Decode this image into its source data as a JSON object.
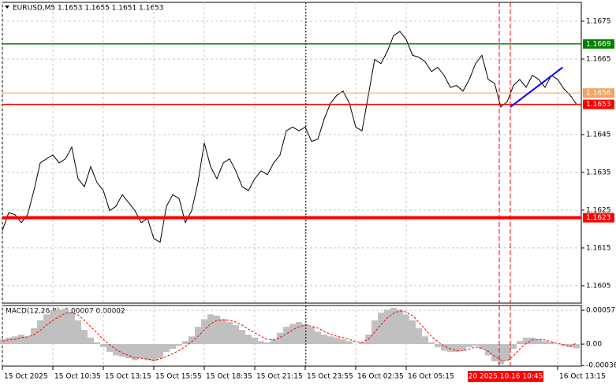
{
  "chart_data": [
    {
      "type": "line",
      "title": "EURUSD,M5 1.1653 1.1655 1.1651 1.1653",
      "color": "#000000",
      "values": [
        1.16196,
        1.16243,
        1.16238,
        1.16217,
        1.16238,
        1.16302,
        1.16375,
        1.16386,
        1.16396,
        1.16375,
        1.16386,
        1.16417,
        1.16333,
        1.16312,
        1.16365,
        1.16323,
        1.16302,
        1.16249,
        1.1626,
        1.16291,
        1.1627,
        1.16249,
        1.16217,
        1.16228,
        1.16175,
        1.16165,
        1.1626,
        1.16291,
        1.16281,
        1.16217,
        1.16249,
        1.16323,
        1.16428,
        1.16365,
        1.16333,
        1.16375,
        1.16386,
        1.16354,
        1.16312,
        1.16302,
        1.16333,
        1.16354,
        1.16344,
        1.16375,
        1.16396,
        1.1646,
        1.1647,
        1.1646,
        1.1647,
        1.16432,
        1.16438,
        1.16491,
        1.16533,
        1.16554,
        1.16565,
        1.16533,
        1.1647,
        1.1646,
        1.16554,
        1.16649,
        1.16638,
        1.1667,
        1.16712,
        1.16723,
        1.16702,
        1.1666,
        1.16655,
        1.16643,
        1.16617,
        1.16628,
        1.16607,
        1.16575,
        1.1658,
        1.16565,
        1.16596,
        1.16638,
        1.1666,
        1.16596,
        1.16586,
        1.16523,
        1.16537,
        1.1658,
        1.16596,
        1.16575,
        1.16607,
        1.16596,
        1.16575,
        1.16607,
        1.16596,
        1.16571,
        1.16554,
        1.1653
      ],
      "xlim": [
        0,
        91.75
      ],
      "xticks": [
        {
          "value": 0,
          "label": "15 Oct 2025"
        },
        {
          "value": 8,
          "label": "15 Oct 10:35"
        },
        {
          "value": 16,
          "label": "15 Oct 13:15"
        },
        {
          "value": 24,
          "label": "15 Oct 15:55"
        },
        {
          "value": 32,
          "label": "15 Oct 18:35"
        },
        {
          "value": 40,
          "label": "15 Oct 21:15"
        },
        {
          "value": 48,
          "label": "15 Oct 23:55"
        },
        {
          "value": 56,
          "label": "16 Oct 02:35"
        },
        {
          "value": 64,
          "label": "16 Oct 05:15"
        },
        {
          "value": 88,
          "label": "16 Oct 13:15"
        }
      ],
      "ylim": [
        1.16004,
        1.168
      ],
      "yticks": [
        1.1675,
        1.1665,
        1.1645,
        1.1635,
        1.1625,
        1.1615,
        1.1605
      ],
      "grid": true,
      "hlines": [
        {
          "value": 1.1669,
          "color": "#008000",
          "style": "normal"
        },
        {
          "value": 1.1656,
          "color": "#f4a460",
          "style": "thin"
        },
        {
          "value": 1.1653,
          "color": "#ff0000",
          "style": "normal"
        },
        {
          "value": 1.1623,
          "color": "#ff0000",
          "style": "thick"
        }
      ],
      "trendline": {
        "x": [
          80.5,
          88.8
        ],
        "values": [
          1.16523,
          1.16628
        ],
        "color": "#0000ff"
      },
      "vlines": [
        {
          "x": 48.1,
          "color": "#000000",
          "style": "dotted"
        },
        {
          "x": 78.75,
          "color": "#ff0000",
          "style": "dashed"
        },
        {
          "x": 80.5,
          "color": "#ff0000",
          "style": "dashed"
        }
      ],
      "cursor_label": {
        "value": 79.75,
        "label": "20 2025.10.16 10:45",
        "color": "#ff0000"
      }
    },
    {
      "type": "bar",
      "title": "MACD(12,26,9) -0.00007 0.00002",
      "color": "#c0c0c0",
      "values": [
        8e-05,
        0.00011,
        0.00013,
        0.00016,
        0.00013,
        0.00027,
        0.0004,
        0.0005,
        0.00056,
        0.00058,
        0.0006,
        0.00053,
        0.0004,
        0.00024,
        0.00011,
        3e-05,
        -5e-05,
        -0.00013,
        -0.00019,
        -0.00021,
        -0.00024,
        -0.00027,
        -0.00024,
        -0.00027,
        -0.00029,
        -0.00024,
        -0.00013,
        -8e-05,
        -3e-05,
        5e-05,
        0.00013,
        0.00029,
        0.00042,
        0.0005,
        0.00048,
        0.00042,
        0.00037,
        0.00032,
        0.00024,
        0.00016,
        0.00011,
        5e-05,
        3e-05,
        8e-05,
        0.00019,
        0.00029,
        0.00034,
        0.00037,
        0.00034,
        0.00029,
        0.00021,
        0.00016,
        0.00013,
        0.00011,
        8e-05,
        5e-05,
        0,
        3e-05,
        0.00016,
        0.0004,
        0.00053,
        0.00058,
        0.00061,
        0.00058,
        0.0005,
        0.0004,
        0.00027,
        0.00013,
        3e-05,
        -5e-05,
        -0.00011,
        -0.00013,
        -0.00013,
        -0.00011,
        -5e-05,
        -3e-05,
        -8e-05,
        -0.00019,
        -0.00029,
        -0.00034,
        -0.00027,
        -8e-05,
        5e-05,
        0.00011,
        0.00011,
        8e-05,
        5e-05,
        3e-05,
        0,
        -3e-05,
        -5e-05,
        -7e-05
      ],
      "signal_color": "#ff0000",
      "signal_values": [
        5e-05,
        7e-05,
        8e-05,
        0.00011,
        0.00012,
        0.00016,
        0.00023,
        0.00032,
        0.0004,
        0.00046,
        0.00052,
        0.00053,
        0.00049,
        0.0004,
        0.00029,
        0.00019,
        8e-05,
        -1e-05,
        -9e-05,
        -0.00015,
        -0.00019,
        -0.00023,
        -0.00024,
        -0.00025,
        -0.00027,
        -0.00025,
        -0.00021,
        -0.00016,
        -0.00011,
        -4e-05,
        4e-05,
        0.00013,
        0.00024,
        0.00034,
        0.0004,
        0.00041,
        0.0004,
        0.00037,
        0.00032,
        0.00025,
        0.00019,
        0.00013,
        8e-05,
        7e-05,
        0.00011,
        0.00017,
        0.00024,
        0.00029,
        0.00032,
        0.0003,
        0.00027,
        0.00021,
        0.00017,
        0.00013,
        0.00011,
        8e-05,
        4e-05,
        3e-05,
        8e-05,
        0.0002,
        0.00033,
        0.00044,
        0.00052,
        0.00056,
        0.00054,
        0.00048,
        0.00037,
        0.00025,
        0.00013,
        4e-05,
        -3e-05,
        -8e-05,
        -0.00011,
        -0.00011,
        -8e-05,
        -5e-05,
        -7e-05,
        -0.00012,
        -0.0002,
        -0.00027,
        -0.00028,
        -0.0002,
        -8e-05,
        1e-05,
        7e-05,
        8e-05,
        7e-05,
        4e-05,
        1e-05,
        -1e-05,
        -4e-05,
        2e-05
      ],
      "ylim": [
        -0.00037,
        0.00065
      ],
      "yticks": [
        0.00057,
        {
          "value": 0,
          "label": "0.00"
        },
        -0.00036
      ],
      "grid": true
    }
  ]
}
